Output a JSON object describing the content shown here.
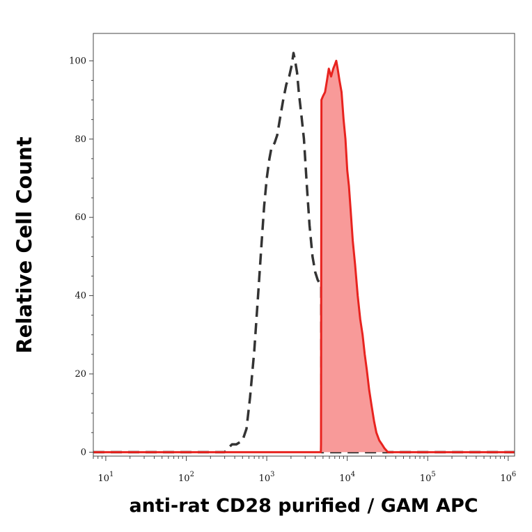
{
  "chart_data": {
    "type": "area",
    "xlabel": "anti-rat CD28 purified / GAM APC",
    "ylabel": "Relative Cell Count",
    "x_scale": "log",
    "xlim": [
      7,
      1200000
    ],
    "ylim": [
      -1,
      107
    ],
    "grid": false,
    "legend": "none",
    "y_ticks": [
      0,
      20,
      40,
      60,
      80,
      100
    ],
    "y_tick_labels": [
      "0",
      "20",
      "40",
      "60",
      "80",
      "100"
    ],
    "x_ticks": [
      10,
      100,
      1000,
      10000,
      100000,
      1000000
    ],
    "x_tick_labels": [
      {
        "base": "10",
        "exp": "1"
      },
      {
        "base": "10",
        "exp": "2"
      },
      {
        "base": "10",
        "exp": "3"
      },
      {
        "base": "10",
        "exp": "4"
      },
      {
        "base": "10",
        "exp": "5"
      },
      {
        "base": "10",
        "exp": "6"
      }
    ],
    "series": [
      {
        "style": "dashed",
        "color": "#333333",
        "fill": "none",
        "points": [
          [
            7,
            0
          ],
          [
            300,
            0
          ],
          [
            330,
            1
          ],
          [
            370,
            2
          ],
          [
            420,
            2
          ],
          [
            500,
            3
          ],
          [
            560,
            6
          ],
          [
            620,
            14
          ],
          [
            700,
            26
          ],
          [
            780,
            40
          ],
          [
            860,
            53
          ],
          [
            930,
            63
          ],
          [
            1000,
            70
          ],
          [
            1080,
            75
          ],
          [
            1150,
            78
          ],
          [
            1250,
            79
          ],
          [
            1350,
            81
          ],
          [
            1480,
            86
          ],
          [
            1600,
            90
          ],
          [
            1750,
            94
          ],
          [
            1900,
            96
          ],
          [
            2050,
            99
          ],
          [
            2150,
            102
          ],
          [
            2250,
            100
          ],
          [
            2380,
            97
          ],
          [
            2500,
            92
          ],
          [
            2700,
            86
          ],
          [
            2900,
            80
          ],
          [
            3150,
            68
          ],
          [
            3400,
            58
          ],
          [
            3700,
            50
          ],
          [
            4000,
            46
          ],
          [
            4300,
            44
          ],
          [
            4600,
            43
          ],
          [
            4750,
            43
          ],
          [
            4800,
            0
          ],
          [
            5000,
            0
          ],
          [
            1200000,
            0
          ]
        ]
      },
      {
        "style": "solid",
        "color": "#e8231f",
        "fill": "#f89a99",
        "points": [
          [
            7,
            0
          ],
          [
            4700,
            0
          ],
          [
            4720,
            2
          ],
          [
            4780,
            90
          ],
          [
            5000,
            91
          ],
          [
            5300,
            92
          ],
          [
            5600,
            95
          ],
          [
            5900,
            98
          ],
          [
            6300,
            96
          ],
          [
            6700,
            98
          ],
          [
            7000,
            99
          ],
          [
            7300,
            100
          ],
          [
            7600,
            98
          ],
          [
            8000,
            95
          ],
          [
            8500,
            92
          ],
          [
            9000,
            85
          ],
          [
            9500,
            80
          ],
          [
            10000,
            72
          ],
          [
            10500,
            68
          ],
          [
            11000,
            62
          ],
          [
            11700,
            54
          ],
          [
            12500,
            48
          ],
          [
            13500,
            40
          ],
          [
            14500,
            34
          ],
          [
            15500,
            30
          ],
          [
            16500,
            25
          ],
          [
            17500,
            21
          ],
          [
            18700,
            16
          ],
          [
            20000,
            12
          ],
          [
            21500,
            8
          ],
          [
            23000,
            5
          ],
          [
            25000,
            3
          ],
          [
            27000,
            2
          ],
          [
            29000,
            1
          ],
          [
            32000,
            0
          ],
          [
            1200000,
            0
          ]
        ]
      }
    ]
  }
}
